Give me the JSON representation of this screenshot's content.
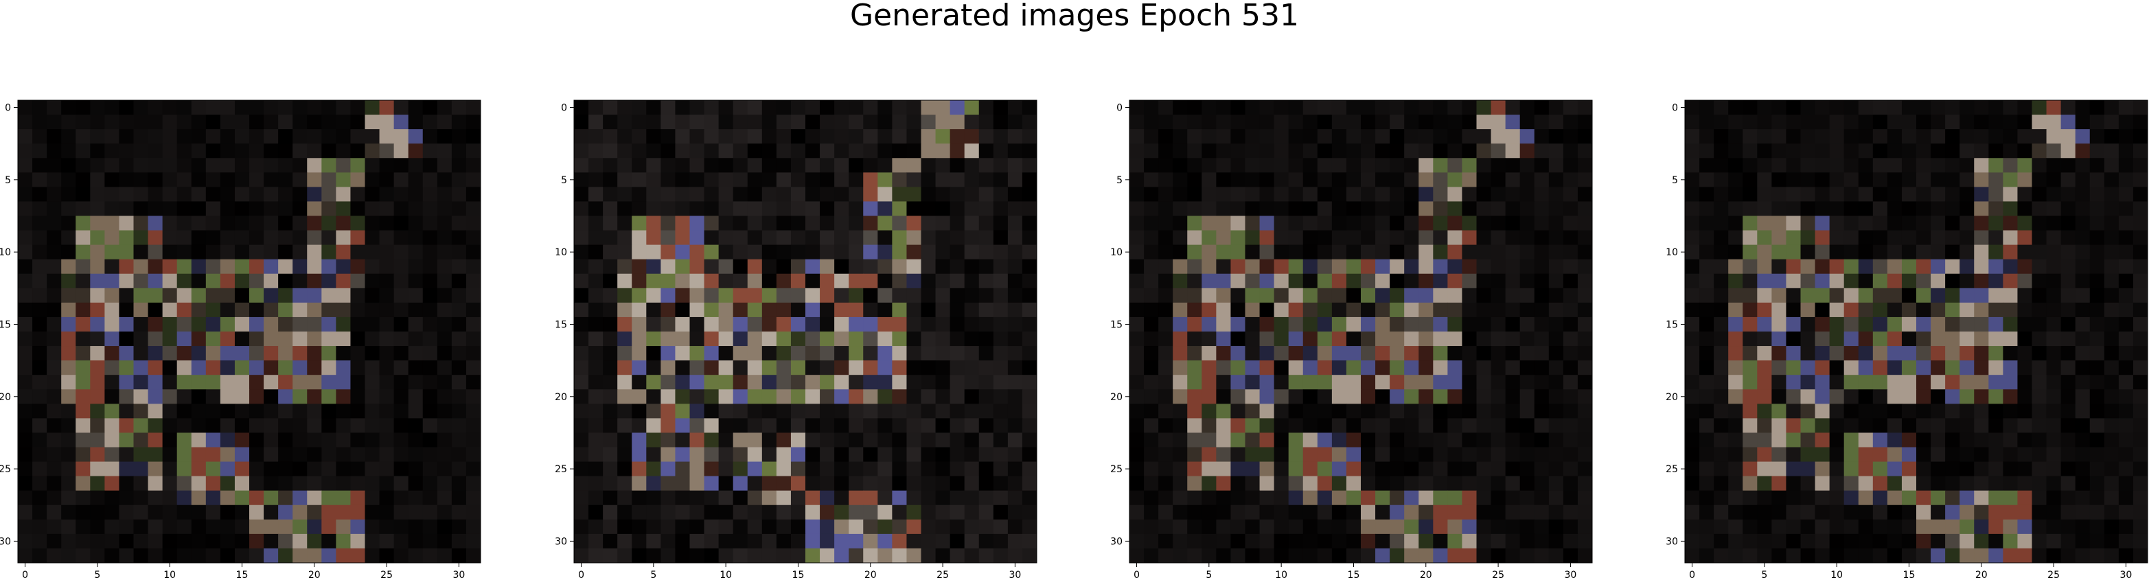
{
  "figure": {
    "title": "Generated images Epoch 531"
  },
  "axes_ticks": {
    "x": [
      "0",
      "5",
      "10",
      "15",
      "20",
      "25",
      "30"
    ],
    "y": [
      "0",
      "5",
      "10",
      "15",
      "20",
      "25",
      "30"
    ]
  },
  "images": [
    {
      "grid_size": 32,
      "variant": 0,
      "description_color_palette": [
        "#0b0b0b",
        "#7c6a57",
        "#a89a8d",
        "#5b6d3b",
        "#7f3e2f",
        "#4c4f87"
      ]
    },
    {
      "grid_size": 32,
      "variant": 1,
      "description_color_palette": [
        "#101010",
        "#8c7c6b",
        "#b3a89c",
        "#69783f",
        "#8a4a38",
        "#57599a"
      ]
    },
    {
      "grid_size": 32,
      "variant": 2,
      "description_color_palette": [
        "#0b0b0b",
        "#7c6a57",
        "#a89a8d",
        "#5b6d3b",
        "#7f3e2f",
        "#4c4f87"
      ]
    },
    {
      "grid_size": 32,
      "variant": 3,
      "description_color_palette": [
        "#0b0b0b",
        "#7c6a57",
        "#a89a8d",
        "#5b6d3b",
        "#7f3e2f",
        "#4c4f87"
      ]
    }
  ]
}
